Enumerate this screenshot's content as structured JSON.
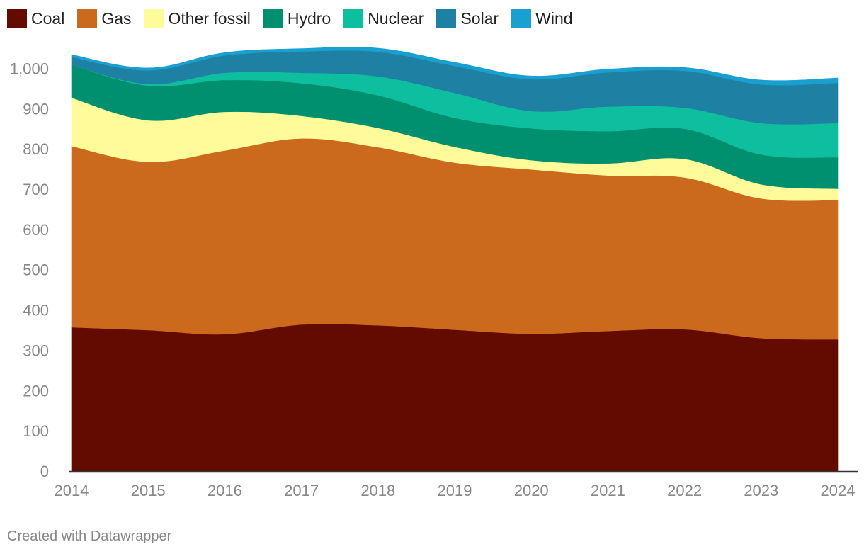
{
  "chart_data": {
    "type": "area",
    "stacked": true,
    "x": [
      2014,
      2015,
      2016,
      2017,
      2018,
      2019,
      2020,
      2021,
      2022,
      2023,
      2024
    ],
    "series": [
      {
        "name": "Coal",
        "color": "#640b00",
        "values": [
          357,
          350,
          340,
          364,
          362,
          351,
          341,
          348,
          352,
          330,
          327
        ]
      },
      {
        "name": "Gas",
        "color": "#cb6a1d",
        "values": [
          450,
          418,
          456,
          462,
          442,
          415,
          408,
          386,
          377,
          347,
          346
        ]
      },
      {
        "name": "Other fossil",
        "color": "#fffb9a",
        "values": [
          120,
          103,
          96,
          56,
          48,
          39,
          23,
          30,
          46,
          35,
          28
        ]
      },
      {
        "name": "Hydro",
        "color": "#00906f",
        "values": [
          82,
          86,
          79,
          81,
          81,
          72,
          79,
          80,
          75,
          74,
          78
        ]
      },
      {
        "name": "Nuclear",
        "color": "#0dbf9e",
        "values": [
          0,
          4,
          18,
          26,
          47,
          62,
          43,
          61,
          52,
          78,
          85
        ]
      },
      {
        "name": "Solar",
        "color": "#1e81a3",
        "values": [
          19,
          34,
          43,
          53,
          61,
          67,
          79,
          85,
          92,
          96,
          100
        ]
      },
      {
        "name": "Wind",
        "color": "#19a0d0",
        "values": [
          6,
          6,
          7,
          7,
          9,
          9,
          8,
          8,
          8,
          11,
          12
        ]
      }
    ],
    "xlabel": "",
    "ylabel": "",
    "ylim": [
      0,
      1050
    ],
    "yticks": [
      0,
      100,
      200,
      300,
      400,
      500,
      600,
      700,
      800,
      900,
      1000
    ],
    "ytick_labels": [
      "0",
      "100",
      "200",
      "300",
      "400",
      "500",
      "600",
      "700",
      "800",
      "900",
      "1,000"
    ],
    "grid": false,
    "legend_position": "top-left"
  },
  "legend": [
    {
      "label": "Coal",
      "color": "#640b00"
    },
    {
      "label": "Gas",
      "color": "#cb6a1d"
    },
    {
      "label": "Other fossil",
      "color": "#fffb9a"
    },
    {
      "label": "Hydro",
      "color": "#00906f"
    },
    {
      "label": "Nuclear",
      "color": "#0dbf9e"
    },
    {
      "label": "Solar",
      "color": "#1e81a3"
    },
    {
      "label": "Wind",
      "color": "#19a0d0"
    }
  ],
  "footer": {
    "text": "Created with Datawrapper"
  }
}
